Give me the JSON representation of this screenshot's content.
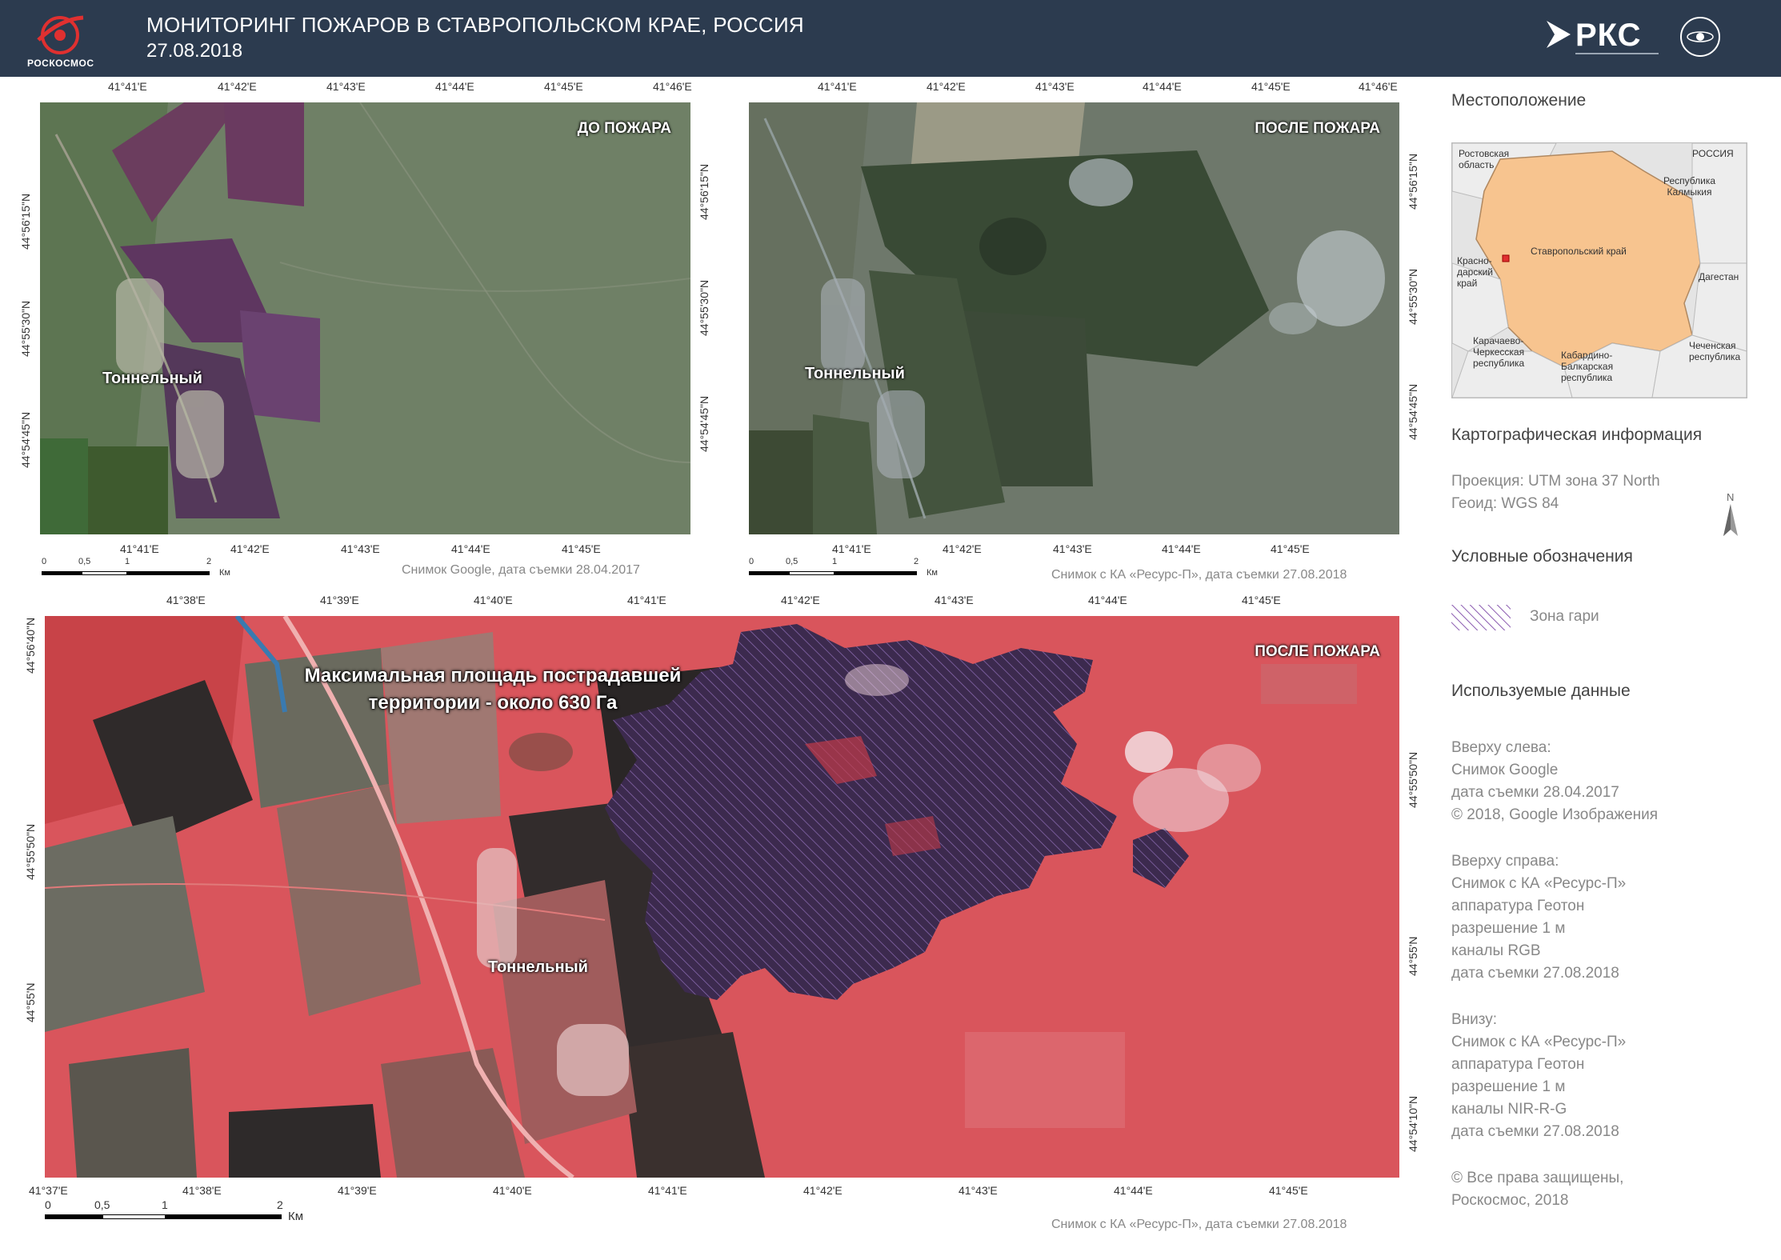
{
  "header": {
    "logo_text": "РОСКОСМОС",
    "title": "МОНИТОРИНГ ПОЖАРОВ В СТАВРОПОЛЬСКОМ КРАЕ, РОССИЯ",
    "date": "27.08.2018",
    "rks_text": "РКС"
  },
  "panel_top_left": {
    "corner_label": "ДО ПОЖАРА",
    "town": "Тоннельный",
    "top_coords": [
      "41°41'E",
      "41°42'E",
      "41°43'E",
      "41°44'E",
      "41°45'E",
      "41°46'E"
    ],
    "bottom_coords": [
      "41°41'E",
      "41°42'E",
      "41°43'E",
      "41°44'E",
      "41°45'E"
    ],
    "left_coords": [
      "44°56'15\"N",
      "44°55'30\"N",
      "44°54'45\"N"
    ],
    "right_coords": [
      "44°56'15\"N",
      "44°55'30\"N",
      "44°54'45\"N"
    ],
    "scale": [
      "0",
      "0,5",
      "1",
      "2",
      "Км"
    ],
    "credit": "Снимок Google, дата съемки 28.04.2017"
  },
  "panel_top_right": {
    "corner_label": "ПОСЛЕ ПОЖАРА",
    "town": "Тоннельный",
    "top_coords": [
      "41°41'E",
      "41°42'E",
      "41°43'E",
      "41°44'E",
      "41°45'E",
      "41°46'E"
    ],
    "bottom_coords": [
      "41°41'E",
      "41°42'E",
      "41°43'E",
      "41°44'E",
      "41°45'E"
    ],
    "right_coords": [
      "44°56'15\"N",
      "44°55'30\"N",
      "44°54'45\"N"
    ],
    "scale": [
      "0",
      "0,5",
      "1",
      "2",
      "Км"
    ],
    "credit": "Снимок с КА «Ресурс-П», дата съемки 27.08.2018"
  },
  "panel_bottom": {
    "corner_label": "ПОСЛЕ ПОЖАРА",
    "town": "Тоннельный",
    "annotation_line1": "Максимальная площадь пострадавшей",
    "annotation_line2": "территории - около 630 Га",
    "top_coords": [
      "41°38'E",
      "41°39'E",
      "41°40'E",
      "41°41'E",
      "41°42'E",
      "41°43'E",
      "41°44'E",
      "41°45'E"
    ],
    "bottom_coords": [
      "41°37'E",
      "41°38'E",
      "41°39'E",
      "41°40'E",
      "41°41'E",
      "41°42'E",
      "41°43'E",
      "41°44'E",
      "41°45'E"
    ],
    "left_coords": [
      "44°56'40\"N",
      "44°55'50\"N",
      "44°55'N"
    ],
    "right_coords": [
      "44°55'50\"N",
      "44°55'N",
      "44°54'10\"N"
    ],
    "scale": [
      "0",
      "0,5",
      "1",
      "2",
      "Км"
    ],
    "credit": "Снимок с КА «Ресурс-П», дата съемки 27.08.2018"
  },
  "sidebar": {
    "location_title": "Местоположение",
    "inset": {
      "russia": "РОССИЯ",
      "rostov": "Ростовская\nобласть",
      "kalmykia": "Республика\nКалмыкия",
      "stavropol": "Ставропольский край",
      "krasnodar": "Красно-\nдарский\nкрай",
      "dagestan": "Дагестан",
      "kchr": "Карачаево-\nЧеркесская\nреспублика",
      "kbr": "Кабардино-\nБалкарская\nреспублика",
      "chechnya": "Чеченская\nреспублика"
    },
    "carto_title": "Картографическая информация",
    "carto_text": "Проекция: UTM зона 37 North\nГеоид: WGS 84",
    "north": "N",
    "legend_title": "Условные обозначения",
    "legend_item": "Зона гари",
    "data_title": "Используемые данные",
    "data_top_left": "Вверху слева:\nСнимок Google\nдата съемки 28.04.2017\n© 2018, Google Изображения",
    "data_top_right": "Вверху справа:\nСнимок с КА «Ресурс-П»\nаппаратура Геотон\nразрешение 1 м\nканалы RGB\nдата съемки 27.08.2018",
    "data_bottom": "Внизу:\nСнимок с КА «Ресурс-П»\nаппаратура Геотон\nразрешение 1 м\nканалы NIR-R-G\nдата съемки 27.08.2018",
    "copyright": "© Все права защищены,\nРоскосмос, 2018"
  },
  "colors": {
    "header_bg": "#2c3b4f",
    "burn_zone": "#6a4a9a",
    "stavropol_fill": "#f7c48f"
  }
}
